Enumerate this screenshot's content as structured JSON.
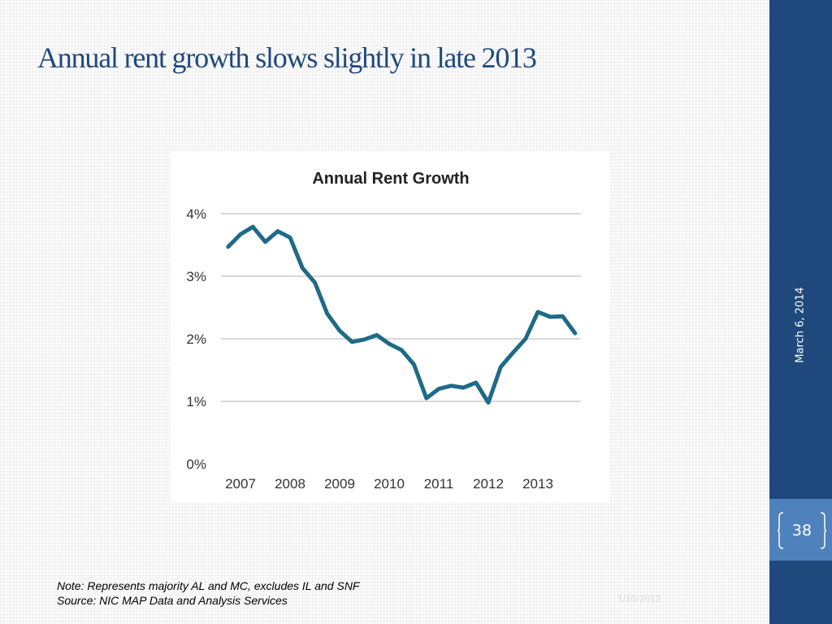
{
  "slide": {
    "title": "Annual rent growth slows slightly  in late 2013",
    "sidebar_date": "March 6, 2014",
    "page_number": "38",
    "note": "Note:  Represents majority AL and MC, excludes IL and SNF",
    "source": "Source:  NIC MAP Data and Analysis Services",
    "footer_date": "1/10/2012"
  },
  "colors": {
    "accent": "#1f497d",
    "page_box": "#4f81bd",
    "line": "#1e6a87",
    "grid": "#d9d9d9"
  },
  "chart_data": {
    "type": "line",
    "title": "Annual Rent Growth",
    "xlabel": "",
    "ylabel": "",
    "y_ticks": [
      "0%",
      "1%",
      "2%",
      "3%",
      "4%"
    ],
    "y_tick_values": [
      0,
      1,
      2,
      3,
      4
    ],
    "ylim": [
      0,
      4
    ],
    "x_ticks": [
      "2007",
      "2008",
      "2009",
      "2010",
      "2011",
      "2012",
      "2013"
    ],
    "x_tick_values": [
      2007,
      2008,
      2009,
      2010,
      2011,
      2012,
      2013
    ],
    "xlim": [
      2007,
      2013.75
    ],
    "grid": true,
    "legend": "none",
    "series": [
      {
        "x": [
          2006.75,
          2007.0,
          2007.25,
          2007.5,
          2007.75,
          2008.0,
          2008.25,
          2008.5,
          2008.75,
          2009.0,
          2009.25,
          2009.5,
          2009.75,
          2010.0,
          2010.25,
          2010.5,
          2010.75,
          2011.0,
          2011.25,
          2011.5,
          2011.75,
          2012.0,
          2012.25,
          2012.5,
          2012.75,
          2013.0,
          2013.25,
          2013.5,
          2013.75
        ],
        "values": [
          3.47,
          3.67,
          3.79,
          3.55,
          3.72,
          3.62,
          3.13,
          2.9,
          2.4,
          2.13,
          1.95,
          1.99,
          2.06,
          1.92,
          1.82,
          1.59,
          1.05,
          1.2,
          1.25,
          1.22,
          1.3,
          0.98,
          1.55,
          1.78,
          2.0,
          2.43,
          2.35,
          2.36,
          2.09
        ]
      }
    ]
  }
}
